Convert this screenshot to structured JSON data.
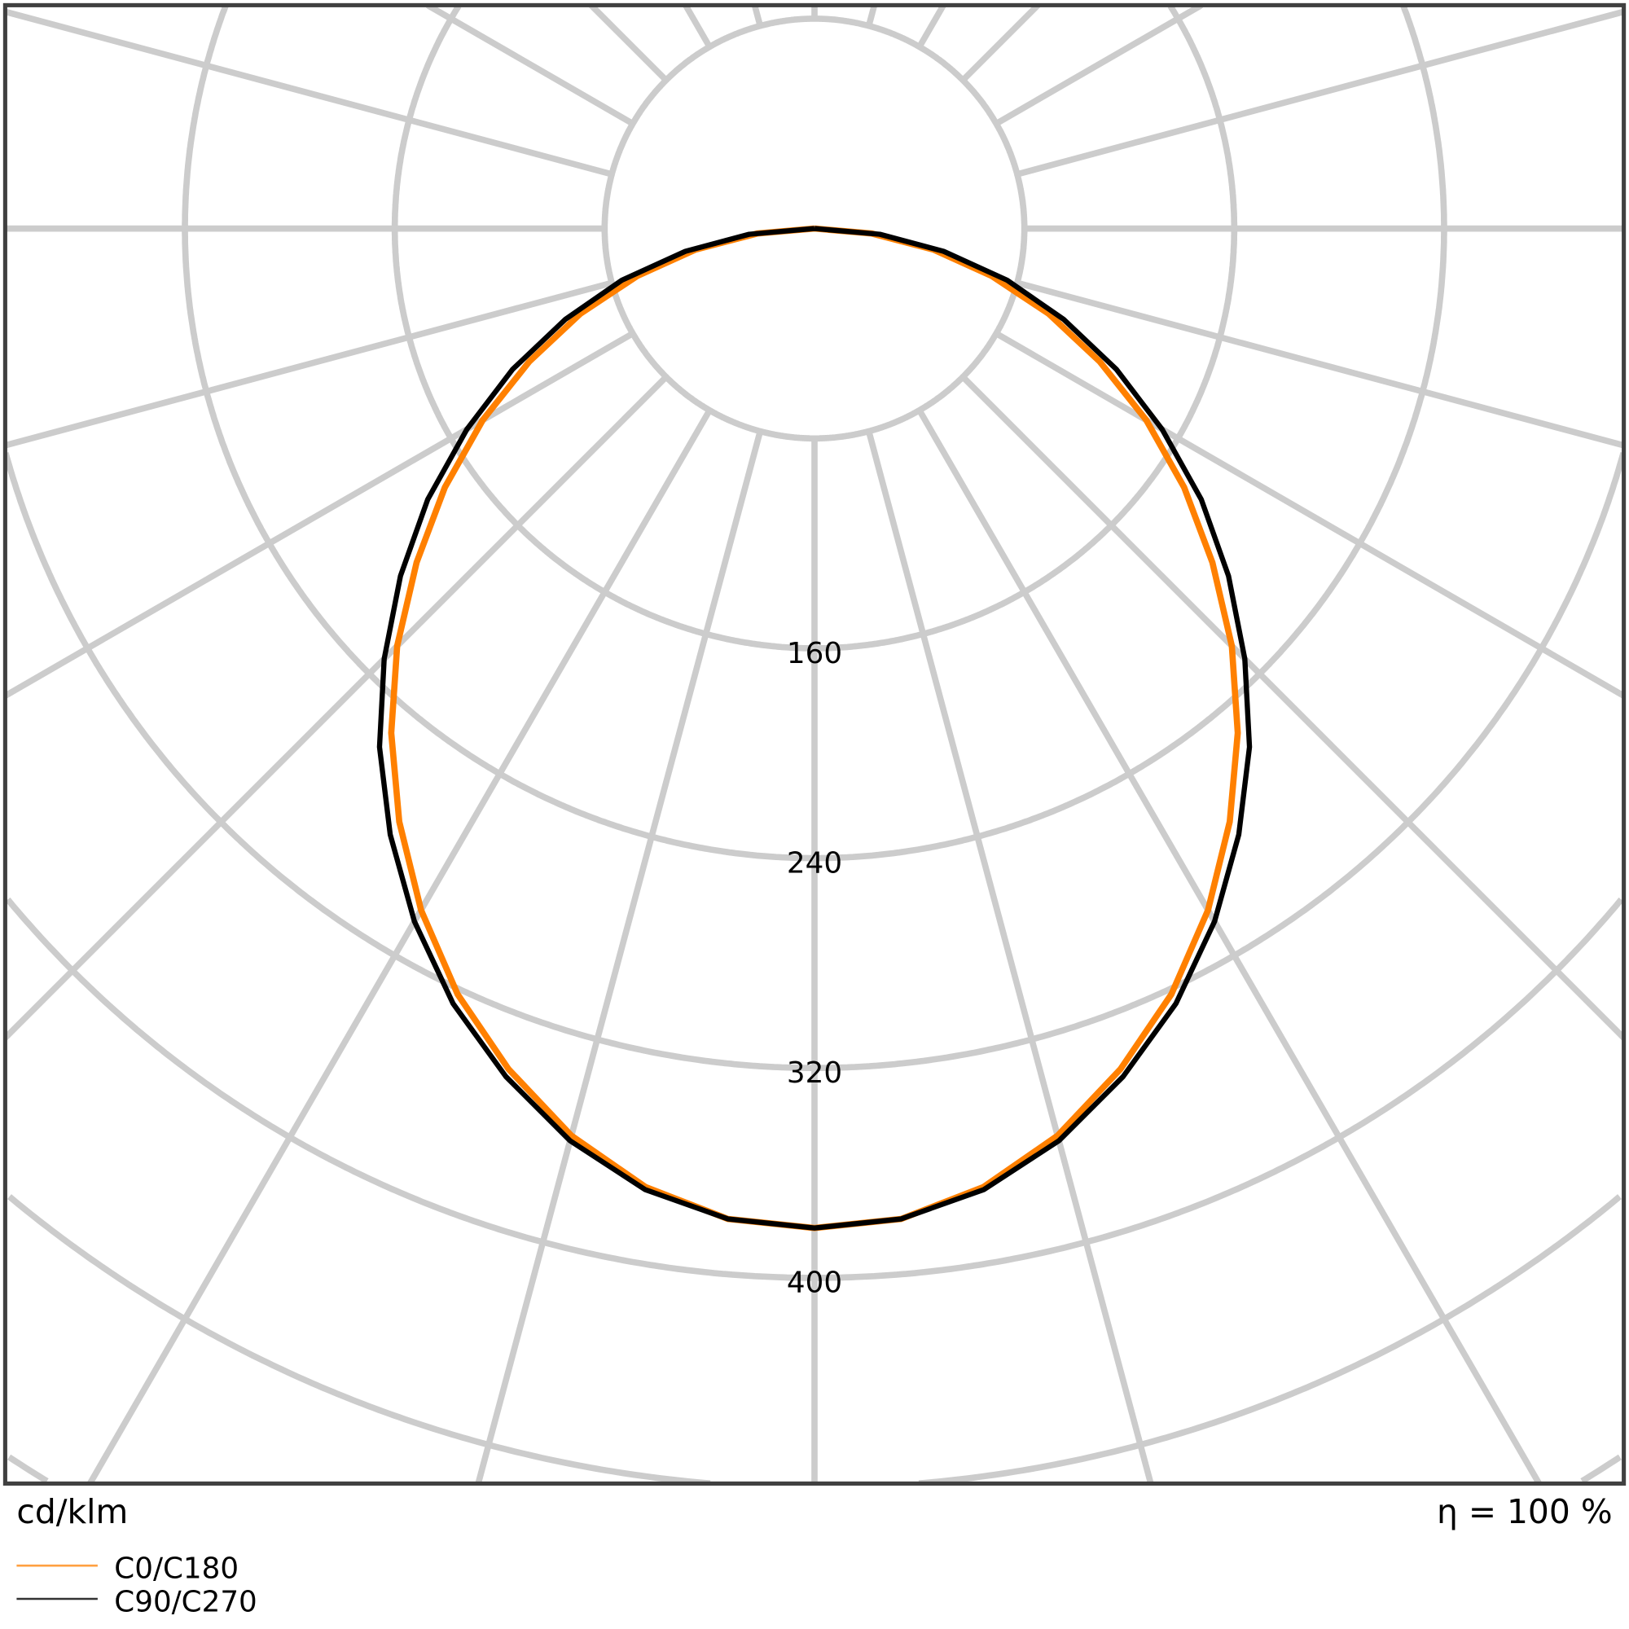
{
  "chart_data": {
    "type": "polar-line",
    "unit_label": "cd/klm",
    "efficiency_label": "η = 100 %",
    "radial_ticks": [
      160,
      240,
      320,
      400
    ],
    "radial_rings": [
      80,
      160,
      240,
      320,
      400,
      480,
      560,
      640
    ],
    "radial_max_visible": 480,
    "angle_step_deg": 15,
    "grid": true,
    "legend_placement": "bottom-left",
    "angles_deg": [
      0,
      5,
      10,
      15,
      20,
      25,
      30,
      35,
      40,
      45,
      50,
      55,
      60,
      65,
      70,
      75,
      80,
      85,
      90
    ],
    "series": [
      {
        "name": "C0/C180",
        "color": "#ff8000",
        "values": [
          381,
          379,
          371,
          358,
          341,
          322,
          300,
          276,
          251,
          225,
          198,
          172,
          146,
          120,
          95,
          70,
          46,
          22,
          0
        ]
      },
      {
        "name": "C90/C270",
        "color": "#000000",
        "values": [
          381,
          379,
          372,
          360,
          344,
          326,
          305,
          282,
          258,
          232,
          206,
          180,
          153,
          127,
          101,
          76,
          50,
          25,
          0
        ]
      }
    ]
  }
}
